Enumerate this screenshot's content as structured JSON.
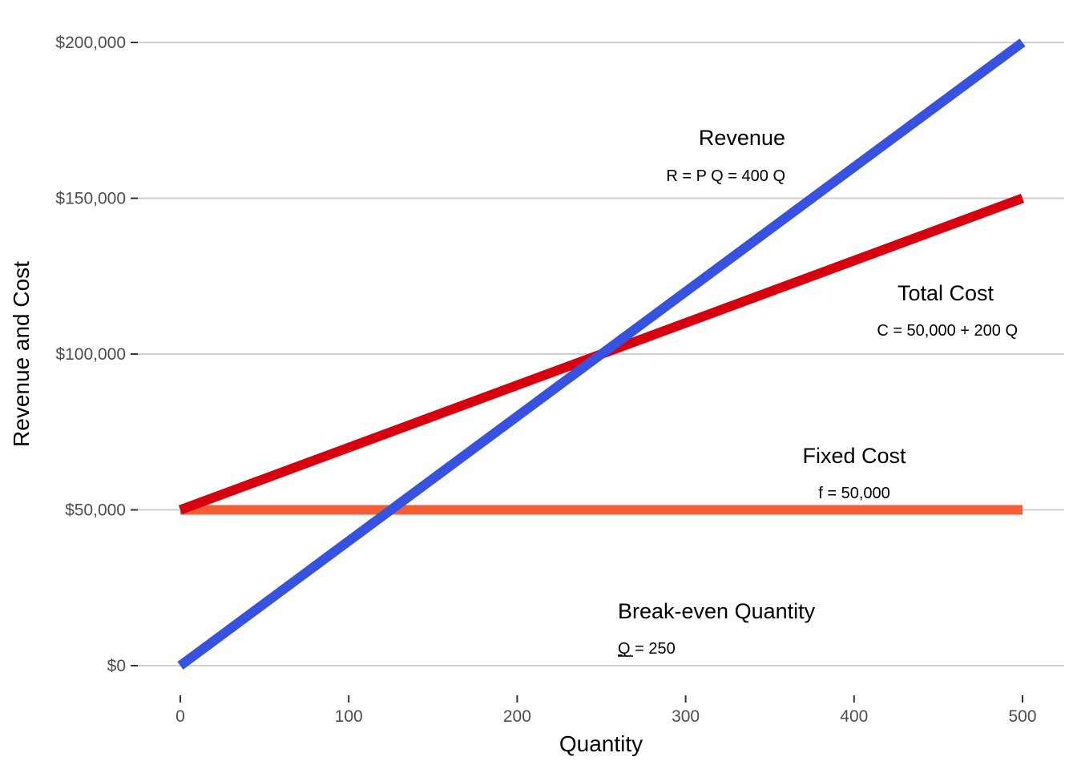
{
  "chart_data": {
    "type": "line",
    "xlabel": "Quantity",
    "ylabel": "Revenue and Cost",
    "xlim": [
      0,
      500
    ],
    "ylim": [
      0,
      200000
    ],
    "x_ticks": [
      0,
      100,
      200,
      300,
      400,
      500
    ],
    "x_tick_labels": [
      "0",
      "100",
      "200",
      "300",
      "400",
      "500"
    ],
    "y_ticks": [
      0,
      50000,
      100000,
      150000,
      200000
    ],
    "y_tick_labels": [
      "$0",
      "$50,000",
      "$100,000",
      "$150,000",
      "$200,000"
    ],
    "grid": "horizontal",
    "legend": "none",
    "series": [
      {
        "key": "fixed",
        "x": [
          0,
          500
        ],
        "y": [
          50000,
          50000
        ],
        "color": "#f55e35"
      },
      {
        "key": "total",
        "x": [
          0,
          500
        ],
        "y": [
          50000,
          150000
        ],
        "color": "#d7000f"
      },
      {
        "key": "revenue",
        "x": [
          0,
          500
        ],
        "y": [
          0,
          200000
        ],
        "color": "#3751e0"
      }
    ],
    "annotations": [
      {
        "key": "revenue",
        "title": "Revenue",
        "subtitle": "R = P Q = 400 Q"
      },
      {
        "key": "total",
        "title": "Total Cost",
        "subtitle": "C = 50,000 + 200 Q"
      },
      {
        "key": "fixed",
        "title": "Fixed Cost",
        "subtitle": "f = 50,000"
      },
      {
        "key": "breakeven",
        "title": "Break-even Quantity",
        "subtitle_symbol": "Q",
        "subtitle_rest": " = 250"
      }
    ]
  }
}
